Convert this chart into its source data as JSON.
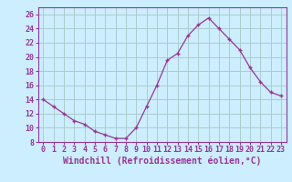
{
  "x": [
    0,
    1,
    2,
    3,
    4,
    5,
    6,
    7,
    8,
    9,
    10,
    11,
    12,
    13,
    14,
    15,
    16,
    17,
    18,
    19,
    20,
    21,
    22,
    23
  ],
  "y": [
    14,
    13,
    12,
    11,
    10.5,
    9.5,
    9,
    8.5,
    8.5,
    10,
    13,
    16,
    19.5,
    20.5,
    23,
    24.5,
    25.5,
    24,
    22.5,
    21,
    18.5,
    16.5,
    15,
    14.5
  ],
  "line_color": "#993399",
  "marker": "+",
  "bg_color": "#cceeff",
  "grid_color": "#aacccc",
  "xlabel": "Windchill (Refroidissement éolien,°C)",
  "ylim": [
    8,
    27
  ],
  "xlim": [
    -0.5,
    23.5
  ],
  "yticks": [
    8,
    10,
    12,
    14,
    16,
    18,
    20,
    22,
    24,
    26
  ],
  "xticks": [
    0,
    1,
    2,
    3,
    4,
    5,
    6,
    7,
    8,
    9,
    10,
    11,
    12,
    13,
    14,
    15,
    16,
    17,
    18,
    19,
    20,
    21,
    22,
    23
  ],
  "tick_color": "#993399",
  "label_color": "#993399",
  "axis_color": "#993399",
  "xlabel_fontsize": 7,
  "tick_fontsize": 6
}
